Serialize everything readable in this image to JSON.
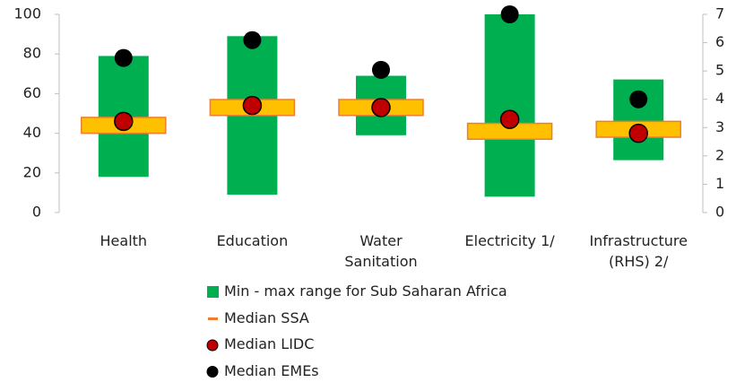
{
  "chart_data": {
    "type": "range",
    "categories": [
      "Health",
      "Education",
      "Water\nSanitation",
      "Electricity 1/",
      "Infrastructure\n(RHS) 2/"
    ],
    "category_axis": [
      "y",
      "y",
      "y",
      "y",
      "y2"
    ],
    "series": [
      {
        "name": "Min - max range for Sub Saharan Africa",
        "color": "#00b050",
        "low": [
          18,
          9,
          39,
          8,
          1.85
        ],
        "high": [
          79,
          89,
          69,
          100,
          4.7
        ]
      },
      {
        "name": "Median SSA",
        "color": "#ffc000",
        "values": [
          44,
          53,
          53,
          41,
          2.94
        ]
      },
      {
        "name": "Median LIDC",
        "color": "#c00000",
        "values": [
          46,
          54,
          53,
          47,
          2.8
        ]
      },
      {
        "name": "Median EMEs",
        "color": "#000000",
        "values": [
          78,
          87,
          72,
          100,
          4.0
        ]
      }
    ],
    "ylim": [
      0,
      100
    ],
    "yticks": [
      0,
      20,
      40,
      60,
      80,
      100
    ],
    "y2lim": [
      0,
      7
    ],
    "y2ticks": [
      0,
      1,
      2,
      3,
      4,
      5,
      6,
      7
    ]
  }
}
